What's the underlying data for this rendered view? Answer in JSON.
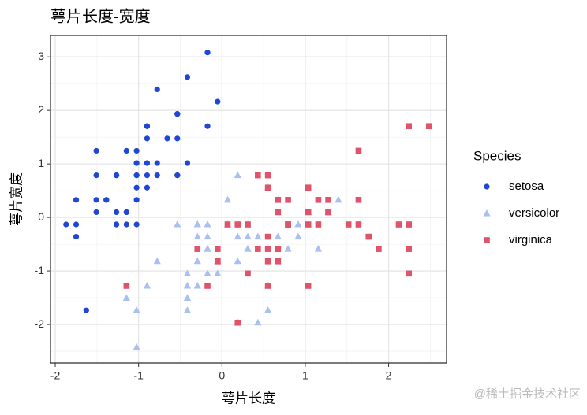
{
  "chart_data": {
    "type": "scatter",
    "title": "萼片长度-宽度",
    "x_label": "萼片长度",
    "y_label": "萼片宽度",
    "legend_title": "Species",
    "legend_position": "right",
    "grid": true,
    "watermark": "@稀土掘金技术社区",
    "xlim": [
      -2.057,
      2.695
    ],
    "ylim": [
      -2.72,
      3.4
    ],
    "xticks": [
      -2,
      -1,
      0,
      1,
      2
    ],
    "yticks": [
      -2,
      -1,
      0,
      1,
      2,
      3
    ],
    "xminor": [
      -1.5,
      -0.5,
      0.5,
      1.5,
      2.5
    ],
    "yminor": [
      -2.5,
      -1.5,
      -0.5,
      0.5,
      1.5,
      2.5
    ],
    "series": [
      {
        "name": "setosa",
        "color": "#2046d4",
        "shape": "circle",
        "x": [
          -0.898,
          -1.145,
          -1.387,
          -1.507,
          -1.024,
          -0.535,
          -1.507,
          -1.024,
          -1.749,
          -1.145,
          -0.535,
          -1.266,
          -1.266,
          -1.87,
          -0.052,
          -0.173,
          -0.535,
          -0.898,
          -0.173,
          -0.898,
          -0.535,
          -0.898,
          -1.507,
          -0.898,
          -1.266,
          -1.024,
          -1.024,
          -0.777,
          -0.777,
          -1.387,
          -1.266,
          -0.535,
          -0.777,
          -0.415,
          -1.145,
          -1.024,
          -0.415,
          -1.145,
          -1.749,
          -0.898,
          -1.024,
          -1.628,
          -1.749,
          -1.024,
          -0.898,
          -1.266,
          -0.898,
          -1.507,
          -0.656,
          -1.024
        ],
        "values": [
          1.016,
          -0.131,
          0.328,
          0.098,
          1.246,
          1.934,
          0.787,
          0.787,
          -0.36,
          0.098,
          1.475,
          0.787,
          -0.131,
          -0.131,
          2.163,
          3.081,
          1.934,
          1.016,
          1.705,
          1.705,
          0.787,
          1.475,
          1.246,
          0.557,
          0.787,
          -0.131,
          0.787,
          1.016,
          0.787,
          0.328,
          0.098,
          0.787,
          2.393,
          2.622,
          0.098,
          0.328,
          1.016,
          1.246,
          -0.131,
          0.787,
          1.016,
          -1.737,
          0.328,
          1.016,
          1.705,
          -0.131,
          1.705,
          0.328,
          1.475,
          0.557
        ]
      },
      {
        "name": "versicolor",
        "color": "#a9c0f0",
        "shape": "triangle",
        "x": [
          1.397,
          0.672,
          1.276,
          -0.415,
          0.793,
          -0.173,
          0.552,
          -1.145,
          0.914,
          -0.777,
          -1.024,
          0.068,
          0.189,
          0.31,
          -0.294,
          1.035,
          -0.294,
          -0.052,
          0.431,
          -0.294,
          0.068,
          0.31,
          0.552,
          0.31,
          0.672,
          0.914,
          1.156,
          1.035,
          0.189,
          -0.173,
          -0.415,
          -0.415,
          -0.052,
          0.189,
          -0.535,
          0.189,
          1.035,
          0.552,
          -0.294,
          -0.415,
          -0.415,
          0.31,
          -0.052,
          -1.024,
          -0.294,
          -0.173,
          -0.173,
          0.431,
          -0.898,
          -0.173
        ],
        "values": [
          0.328,
          0.328,
          0.098,
          -1.737,
          -0.589,
          -0.589,
          0.557,
          -1.507,
          -0.36,
          -0.819,
          -2.425,
          -0.131,
          -1.966,
          -0.36,
          -0.36,
          0.098,
          -0.131,
          -0.819,
          -1.966,
          -1.278,
          0.328,
          -0.589,
          -1.278,
          -0.589,
          -0.36,
          -0.131,
          -0.589,
          -0.131,
          -0.36,
          -1.048,
          -1.507,
          -1.507,
          -0.819,
          -0.819,
          -0.131,
          0.787,
          0.098,
          -1.737,
          -0.131,
          -1.278,
          -1.048,
          -0.131,
          -1.048,
          -1.737,
          -0.819,
          -0.131,
          -0.36,
          -0.36,
          -1.278,
          -0.589
        ]
      },
      {
        "name": "virginica",
        "color": "#e0536a",
        "shape": "square",
        "x": [
          0.552,
          -0.052,
          1.518,
          0.552,
          0.793,
          2.122,
          -1.145,
          1.76,
          1.035,
          1.639,
          0.793,
          0.672,
          1.156,
          -0.173,
          -0.052,
          0.672,
          0.793,
          2.243,
          2.243,
          0.189,
          1.276,
          -0.294,
          2.243,
          0.552,
          1.035,
          1.639,
          0.431,
          0.31,
          0.672,
          1.639,
          1.88,
          2.484,
          0.672,
          0.552,
          0.31,
          2.243,
          0.552,
          0.672,
          0.189,
          1.276,
          1.035,
          1.276,
          -0.052,
          1.156,
          1.035,
          1.035,
          0.552,
          0.793,
          0.431,
          0.068
        ],
        "values": [
          0.557,
          -0.819,
          -0.131,
          -0.36,
          -0.131,
          -0.131,
          -1.278,
          -0.36,
          -1.278,
          1.246,
          0.328,
          -0.819,
          -0.131,
          -1.278,
          -0.589,
          0.328,
          -0.131,
          1.705,
          -1.048,
          -1.966,
          0.328,
          -0.589,
          -0.589,
          -0.819,
          0.557,
          0.328,
          -0.589,
          -0.131,
          -0.589,
          -0.131,
          -0.589,
          1.705,
          -0.589,
          -0.589,
          -1.048,
          -0.131,
          0.787,
          0.098,
          -0.131,
          0.098,
          0.098,
          0.098,
          -0.819,
          0.328,
          0.557,
          -0.131,
          -1.278,
          -0.131,
          0.787,
          -0.131
        ]
      }
    ]
  }
}
